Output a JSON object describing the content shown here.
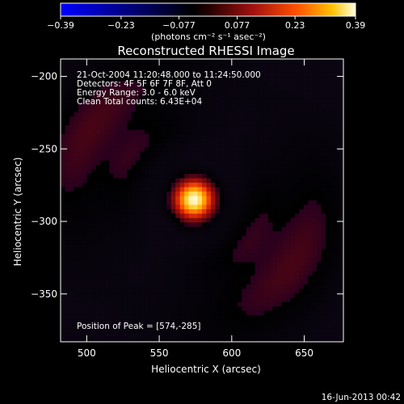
{
  "chart_data": {
    "type": "heatmap",
    "title": "Reconstructed RHESSI Image",
    "xlabel": "Heliocentric X (arcsec)",
    "ylabel": "Heliocentric Y (arcsec)",
    "xlim": [
      482,
      677
    ],
    "ylim": [
      -383,
      -188
    ],
    "x_ticks": [
      500,
      550,
      600,
      650
    ],
    "y_ticks": [
      -200,
      -250,
      -300,
      -350
    ],
    "colorbar": {
      "ticks": [
        -0.39,
        -0.23,
        -0.077,
        0.077,
        0.23,
        0.39
      ],
      "tick_labels": [
        "−0.39",
        "−0.23",
        "−0.077",
        "0.077",
        "0.23",
        "0.39"
      ],
      "unit_label": "(photons cm⁻² s⁻¹ asec⁻²)",
      "range": [
        -0.39,
        0.39
      ]
    },
    "annotations": [
      "21-Oct-2004 11:20:48.000 to 11:24:50.000",
      "Detectors: 4F 5F 6F 7F 8F, Att 0",
      "Energy Range: 3.0 - 6.0 keV",
      "Clean    Total counts: 6.43E+04"
    ],
    "peak_label": "Position of Peak = [574,-285]",
    "peak": {
      "x": 574,
      "y": -285,
      "value": 0.39
    },
    "features": [
      {
        "kind": "gaussian",
        "x": 574,
        "y": -285,
        "sigma": 9,
        "amplitude": 0.45
      },
      {
        "kind": "ring",
        "x": 572,
        "y": -283,
        "radius": 48,
        "width": 10,
        "amplitude": 0.05
      },
      {
        "kind": "ring",
        "x": 572,
        "y": -283,
        "radius": 84,
        "width": 20,
        "amplitude": 0.08
      }
    ]
  },
  "footer_date": "16-Jun-2013 00:42"
}
